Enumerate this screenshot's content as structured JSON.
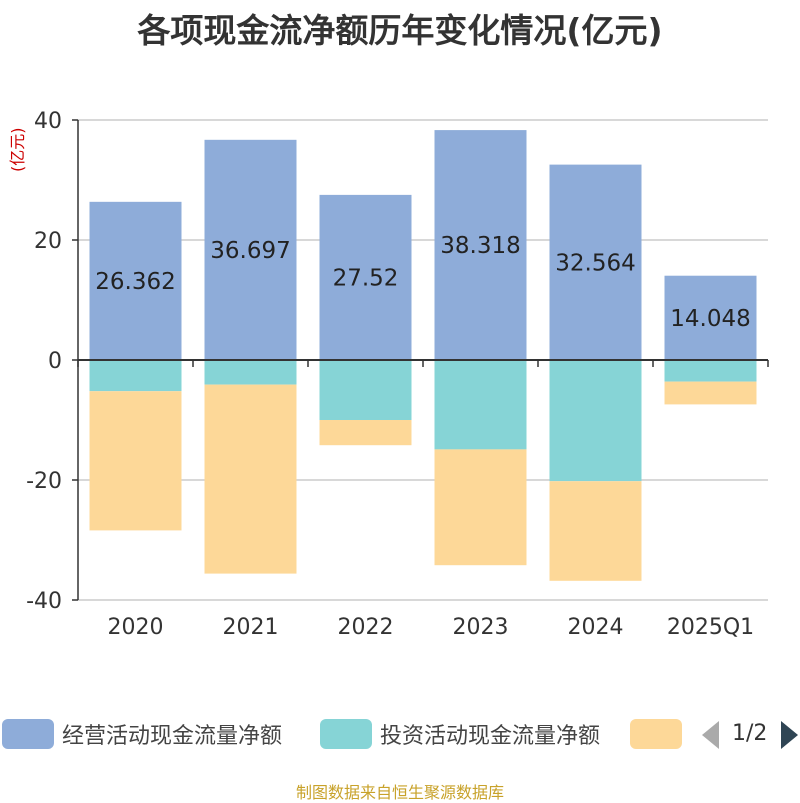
{
  "title": "各项现金流净额历年变化情况(亿元)",
  "unit": "(亿元)",
  "source": "制图数据来自恒生聚源数据库",
  "colors": {
    "operating": "#8eacd9",
    "investing": "#86d4d6",
    "financing": "#fdd898",
    "axis": "#333333",
    "grid": "#cccccc",
    "label": "#222222"
  },
  "legend": {
    "items": [
      "经营活动现金流量净额",
      "投资活动现金流量净额",
      ""
    ],
    "pager": "1/2"
  },
  "chart_data": {
    "type": "bar",
    "stacked": true,
    "categories": [
      "2020",
      "2021",
      "2022",
      "2023",
      "2024",
      "2025Q1"
    ],
    "ylim": [
      -40,
      40
    ],
    "yticks": [
      40,
      20,
      0,
      -20,
      -40
    ],
    "grid": true,
    "legend_position": "bottom",
    "series": [
      {
        "name": "经营活动现金流量净额",
        "values": [
          26.362,
          36.697,
          27.52,
          38.318,
          32.564,
          14.048
        ],
        "labels": [
          "26.362",
          "36.697",
          "27.52",
          "38.318",
          "32.564",
          "14.048"
        ]
      },
      {
        "name": "投资活动现金流量净额",
        "values": [
          -5.2,
          -4.1,
          -10.0,
          -14.9,
          -20.2,
          -3.6
        ]
      },
      {
        "name": "",
        "values": [
          -23.2,
          -31.5,
          -4.2,
          -19.3,
          -16.6,
          -3.8
        ]
      }
    ]
  }
}
